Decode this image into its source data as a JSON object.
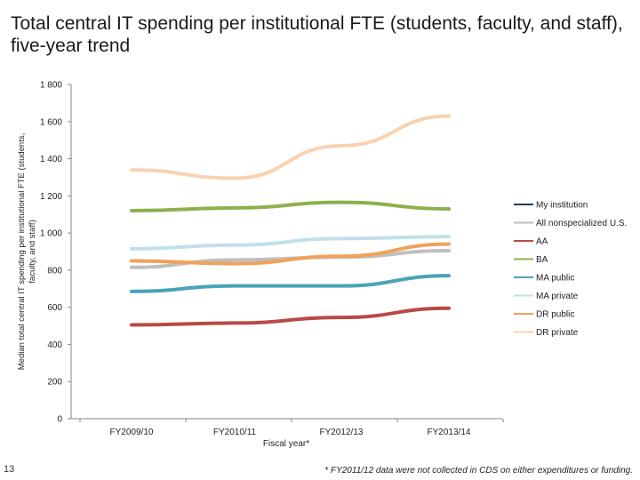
{
  "slide": {
    "title": "Total central IT spending per institutional FTE (students, faculty, and staff), five-year trend",
    "number": "13",
    "footnote": "* FY2011/12 data were not collected in CDS on either expenditures or funding."
  },
  "chart_data": {
    "type": "line",
    "title": "",
    "xlabel": "Fiscal year*",
    "ylabel_lines": [
      "Median total central IT spending per institutional FTE (students,",
      "faculty, and staff)"
    ],
    "categories": [
      "FY2009/10",
      "FY2010/11",
      "FY2012/13",
      "FY2013/14"
    ],
    "ylim": [
      0,
      1800
    ],
    "yticks": [
      0,
      200,
      400,
      600,
      800,
      1000,
      1200,
      1400,
      1600,
      1800
    ],
    "ytick_labels": [
      "0",
      "200",
      "400",
      "600",
      "800",
      "1 000",
      "1 200",
      "1 400",
      "1 600",
      "1 800"
    ],
    "grid": false,
    "legend_position": "right",
    "series": [
      {
        "name": "My institution",
        "color": "#1f3864",
        "values": [
          null,
          null,
          null,
          null
        ]
      },
      {
        "name": "All nonspecialized U.S.",
        "color": "#bfbfbf",
        "values": [
          815,
          855,
          870,
          905
        ]
      },
      {
        "name": "AA",
        "color": "#b84a46",
        "values": [
          505,
          515,
          545,
          595
        ]
      },
      {
        "name": "BA",
        "color": "#8db04e",
        "values": [
          1120,
          1135,
          1165,
          1130
        ]
      },
      {
        "name": "MA public",
        "color": "#4aa3b8",
        "values": [
          685,
          715,
          715,
          770
        ]
      },
      {
        "name": "MA private",
        "color": "#bfe0ea",
        "values": [
          915,
          935,
          970,
          980
        ]
      },
      {
        "name": "DR public",
        "color": "#f0a25a",
        "values": [
          850,
          835,
          875,
          940
        ]
      },
      {
        "name": "DR private",
        "color": "#f8d2b2",
        "values": [
          1340,
          1295,
          1470,
          1630
        ]
      }
    ]
  }
}
